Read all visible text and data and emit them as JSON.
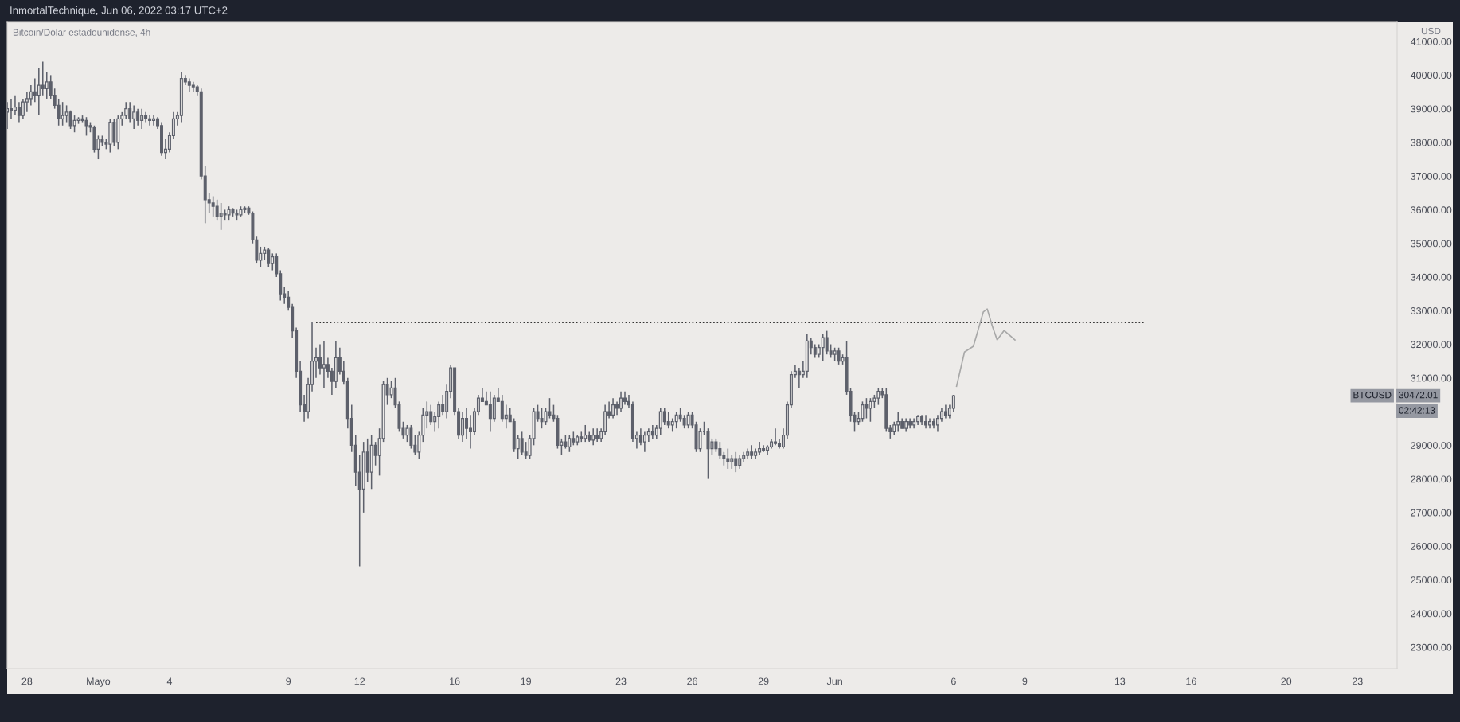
{
  "chart_data": {
    "type": "candlestick",
    "title": "InmortalTechnique, Jun 06, 2022 03:17 UTC+2",
    "subtitle": "Bitcoin/Dólar estadounidense, 4h",
    "ylabel": "USD",
    "color": "#5d606b",
    "x": [
      "2022-04-27T04:00",
      "2022-04-27T08:00",
      "2022-04-27T12:00",
      "2022-04-27T16:00",
      "2022-04-27T20:00",
      "2022-04-28T00:00",
      "2022-04-28T04:00",
      "2022-04-28T08:00",
      "2022-04-28T12:00",
      "2022-04-28T16:00",
      "2022-04-28T20:00",
      "2022-04-29T00:00",
      "2022-04-29T04:00",
      "2022-04-29T08:00",
      "2022-04-29T12:00",
      "2022-04-29T16:00",
      "2022-04-29T20:00",
      "2022-04-30T00:00",
      "2022-04-30T04:00",
      "2022-04-30T08:00",
      "2022-04-30T12:00",
      "2022-04-30T16:00",
      "2022-04-30T20:00",
      "2022-05-01T00:00",
      "2022-05-01T04:00",
      "2022-05-01T08:00",
      "2022-05-01T12:00",
      "2022-05-01T16:00",
      "2022-05-01T20:00",
      "2022-05-02T00:00",
      "2022-05-02T04:00",
      "2022-05-02T08:00",
      "2022-05-02T12:00",
      "2022-05-02T16:00",
      "2022-05-02T20:00",
      "2022-05-03T00:00",
      "2022-05-03T04:00",
      "2022-05-03T08:00",
      "2022-05-03T12:00",
      "2022-05-03T16:00",
      "2022-05-03T20:00",
      "2022-05-04T00:00",
      "2022-05-04T04:00",
      "2022-05-04T08:00",
      "2022-05-04T12:00",
      "2022-05-04T16:00",
      "2022-05-04T20:00",
      "2022-05-05T00:00",
      "2022-05-05T04:00",
      "2022-05-05T08:00",
      "2022-05-05T12:00",
      "2022-05-05T16:00",
      "2022-05-05T20:00",
      "2022-05-06T00:00",
      "2022-05-06T04:00",
      "2022-05-06T08:00",
      "2022-05-06T12:00",
      "2022-05-06T16:00",
      "2022-05-06T20:00",
      "2022-05-07T00:00",
      "2022-05-07T04:00",
      "2022-05-07T08:00",
      "2022-05-07T12:00",
      "2022-05-07T16:00",
      "2022-05-07T20:00",
      "2022-05-08T00:00",
      "2022-05-08T04:00",
      "2022-05-08T08:00",
      "2022-05-08T12:00",
      "2022-05-08T16:00",
      "2022-05-08T20:00",
      "2022-05-09T00:00",
      "2022-05-09T04:00",
      "2022-05-09T08:00",
      "2022-05-09T12:00",
      "2022-05-09T16:00",
      "2022-05-09T20:00",
      "2022-05-10T00:00",
      "2022-05-10T04:00",
      "2022-05-10T08:00",
      "2022-05-10T12:00",
      "2022-05-10T16:00",
      "2022-05-10T20:00",
      "2022-05-11T00:00",
      "2022-05-11T04:00",
      "2022-05-11T08:00",
      "2022-05-11T12:00",
      "2022-05-11T16:00",
      "2022-05-11T20:00",
      "2022-05-12T00:00",
      "2022-05-12T04:00",
      "2022-05-12T08:00",
      "2022-05-12T12:00",
      "2022-05-12T16:00",
      "2022-05-12T20:00",
      "2022-05-13T00:00",
      "2022-05-13T04:00",
      "2022-05-13T08:00",
      "2022-05-13T12:00",
      "2022-05-13T16:00",
      "2022-05-13T20:00",
      "2022-05-14T00:00",
      "2022-05-14T04:00",
      "2022-05-14T08:00",
      "2022-05-14T12:00",
      "2022-05-14T16:00",
      "2022-05-14T20:00",
      "2022-05-15T00:00",
      "2022-05-15T04:00",
      "2022-05-15T08:00",
      "2022-05-15T12:00",
      "2022-05-15T16:00",
      "2022-05-15T20:00",
      "2022-05-16T00:00",
      "2022-05-16T04:00",
      "2022-05-16T08:00",
      "2022-05-16T12:00",
      "2022-05-16T16:00",
      "2022-05-16T20:00",
      "2022-05-17T00:00",
      "2022-05-17T04:00",
      "2022-05-17T08:00",
      "2022-05-17T12:00",
      "2022-05-17T16:00",
      "2022-05-17T20:00",
      "2022-05-18T00:00",
      "2022-05-18T04:00",
      "2022-05-18T08:00",
      "2022-05-18T12:00",
      "2022-05-18T16:00",
      "2022-05-18T20:00",
      "2022-05-19T00:00",
      "2022-05-19T04:00",
      "2022-05-19T08:00",
      "2022-05-19T12:00",
      "2022-05-19T16:00",
      "2022-05-19T20:00",
      "2022-05-20T00:00",
      "2022-05-20T04:00",
      "2022-05-20T08:00",
      "2022-05-20T12:00",
      "2022-05-20T16:00",
      "2022-05-20T20:00",
      "2022-05-21T00:00",
      "2022-05-21T04:00",
      "2022-05-21T08:00",
      "2022-05-21T12:00",
      "2022-05-21T16:00",
      "2022-05-21T20:00",
      "2022-05-22T00:00",
      "2022-05-22T04:00",
      "2022-05-22T08:00",
      "2022-05-22T12:00",
      "2022-05-22T16:00",
      "2022-05-22T20:00",
      "2022-05-23T00:00",
      "2022-05-23T04:00",
      "2022-05-23T08:00",
      "2022-05-23T12:00",
      "2022-05-23T16:00",
      "2022-05-23T20:00",
      "2022-05-24T00:00",
      "2022-05-24T04:00",
      "2022-05-24T08:00",
      "2022-05-24T12:00",
      "2022-05-24T16:00",
      "2022-05-24T20:00",
      "2022-05-25T00:00",
      "2022-05-25T04:00",
      "2022-05-25T08:00",
      "2022-05-25T12:00",
      "2022-05-25T16:00",
      "2022-05-25T20:00",
      "2022-05-26T00:00",
      "2022-05-26T04:00",
      "2022-05-26T08:00",
      "2022-05-26T12:00",
      "2022-05-26T16:00",
      "2022-05-26T20:00",
      "2022-05-27T00:00",
      "2022-05-27T04:00",
      "2022-05-27T08:00",
      "2022-05-27T12:00",
      "2022-05-27T16:00",
      "2022-05-27T20:00",
      "2022-05-28T00:00",
      "2022-05-28T04:00",
      "2022-05-28T08:00",
      "2022-05-28T12:00",
      "2022-05-28T16:00",
      "2022-05-28T20:00",
      "2022-05-29T00:00",
      "2022-05-29T04:00",
      "2022-05-29T08:00",
      "2022-05-29T12:00",
      "2022-05-29T16:00",
      "2022-05-29T20:00",
      "2022-05-30T00:00",
      "2022-05-30T04:00",
      "2022-05-30T08:00",
      "2022-05-30T12:00",
      "2022-05-30T16:00",
      "2022-05-30T20:00",
      "2022-05-31T00:00",
      "2022-05-31T04:00",
      "2022-05-31T08:00",
      "2022-05-31T12:00",
      "2022-05-31T16:00",
      "2022-05-31T20:00",
      "2022-06-01T00:00",
      "2022-06-01T04:00",
      "2022-06-01T08:00",
      "2022-06-01T12:00",
      "2022-06-01T16:00",
      "2022-06-01T20:00",
      "2022-06-02T00:00",
      "2022-06-02T04:00",
      "2022-06-02T08:00",
      "2022-06-02T12:00",
      "2022-06-02T16:00",
      "2022-06-02T20:00",
      "2022-06-03T00:00",
      "2022-06-03T04:00",
      "2022-06-03T08:00",
      "2022-06-03T12:00",
      "2022-06-03T16:00",
      "2022-06-03T20:00",
      "2022-06-04T00:00",
      "2022-06-04T04:00",
      "2022-06-04T08:00",
      "2022-06-04T12:00",
      "2022-06-04T16:00",
      "2022-06-04T20:00",
      "2022-06-05T00:00",
      "2022-06-05T04:00",
      "2022-06-05T08:00",
      "2022-06-05T12:00",
      "2022-06-05T16:00",
      "2022-06-05T20:00",
      "2022-06-06T00:00"
    ],
    "ohlc": [
      [
        38900,
        39200,
        38400,
        39000
      ],
      [
        39000,
        39300,
        38700,
        38950
      ],
      [
        38950,
        39400,
        38800,
        39050
      ],
      [
        39050,
        39200,
        38600,
        38800
      ],
      [
        38800,
        39300,
        38700,
        39200
      ],
      [
        39200,
        39500,
        38900,
        39300
      ],
      [
        39300,
        39700,
        39100,
        39500
      ],
      [
        39500,
        39900,
        39200,
        39400
      ],
      [
        39400,
        40200,
        38800,
        39700
      ],
      [
        39700,
        40400,
        39400,
        39600
      ],
      [
        39600,
        40100,
        39300,
        39800
      ],
      [
        39800,
        40000,
        39300,
        39400
      ],
      [
        39400,
        39600,
        39000,
        39100
      ],
      [
        39100,
        39300,
        38500,
        38700
      ],
      [
        38700,
        39200,
        38500,
        38800
      ],
      [
        38800,
        39100,
        38600,
        38900
      ],
      [
        38900,
        38950,
        38400,
        38500
      ],
      [
        38500,
        38800,
        38300,
        38650
      ],
      [
        38650,
        38750,
        38550,
        38700
      ],
      [
        38700,
        38800,
        38600,
        38650
      ],
      [
        38650,
        38750,
        38200,
        38500
      ],
      [
        38500,
        38600,
        38300,
        38450
      ],
      [
        38450,
        38500,
        37700,
        37800
      ],
      [
        37800,
        38200,
        37500,
        38100
      ],
      [
        38100,
        38200,
        37900,
        38000
      ],
      [
        38000,
        38100,
        37800,
        37950
      ],
      [
        37950,
        38700,
        37700,
        38600
      ],
      [
        38600,
        38700,
        37900,
        38000
      ],
      [
        38000,
        38800,
        37800,
        38700
      ],
      [
        38700,
        38900,
        38500,
        38800
      ],
      [
        38800,
        39200,
        38700,
        39000
      ],
      [
        39000,
        39200,
        38600,
        38700
      ],
      [
        38700,
        39100,
        38400,
        38900
      ],
      [
        38900,
        39000,
        38500,
        38650
      ],
      [
        38650,
        39000,
        38400,
        38800
      ],
      [
        38800,
        38900,
        38600,
        38700
      ],
      [
        38700,
        38800,
        38500,
        38650
      ],
      [
        38650,
        38800,
        38500,
        38700
      ],
      [
        38700,
        38750,
        38400,
        38500
      ],
      [
        38500,
        38600,
        37600,
        37700
      ],
      [
        37700,
        38100,
        37500,
        37800
      ],
      [
        37800,
        38300,
        37700,
        38200
      ],
      [
        38200,
        38900,
        38100,
        38700
      ],
      [
        38700,
        38900,
        38500,
        38800
      ],
      [
        38800,
        40100,
        38600,
        39900
      ],
      [
        39900,
        40000,
        39700,
        39800
      ],
      [
        39800,
        39900,
        39500,
        39700
      ],
      [
        39700,
        39800,
        39500,
        39650
      ],
      [
        39650,
        39700,
        39400,
        39500
      ],
      [
        39500,
        39600,
        36900,
        37000
      ],
      [
        37000,
        37300,
        35600,
        36300
      ],
      [
        36300,
        36500,
        35900,
        36200
      ],
      [
        36200,
        36400,
        35800,
        36100
      ],
      [
        36100,
        36300,
        35700,
        35800
      ],
      [
        35800,
        36200,
        35400,
        35900
      ],
      [
        35900,
        36000,
        35700,
        35850
      ],
      [
        35850,
        36100,
        35700,
        36000
      ],
      [
        36000,
        36050,
        35800,
        35900
      ],
      [
        35900,
        36000,
        35700,
        35850
      ],
      [
        35850,
        36100,
        35800,
        36000
      ],
      [
        36000,
        36100,
        35900,
        36050
      ],
      [
        36050,
        36100,
        35850,
        35900
      ],
      [
        35900,
        35950,
        35000,
        35100
      ],
      [
        35100,
        35200,
        34400,
        34500
      ],
      [
        34500,
        34900,
        34300,
        34700
      ],
      [
        34700,
        34900,
        34500,
        34800
      ],
      [
        34800,
        34850,
        34300,
        34400
      ],
      [
        34400,
        34700,
        34200,
        34600
      ],
      [
        34600,
        34700,
        34000,
        34100
      ],
      [
        34100,
        34200,
        33300,
        33500
      ],
      [
        33500,
        33700,
        33200,
        33400
      ],
      [
        33400,
        33600,
        33000,
        33100
      ],
      [
        33100,
        33200,
        32200,
        32400
      ],
      [
        32400,
        32500,
        31000,
        31200
      ],
      [
        31200,
        31500,
        30000,
        30200
      ],
      [
        30200,
        30500,
        29700,
        30000
      ],
      [
        30000,
        31000,
        29800,
        30800
      ],
      [
        30800,
        32650,
        30600,
        31500
      ],
      [
        31500,
        31900,
        31000,
        31600
      ],
      [
        31600,
        32000,
        31100,
        31300
      ],
      [
        31300,
        32100,
        30700,
        31400
      ],
      [
        31400,
        31600,
        31000,
        31200
      ],
      [
        31200,
        31300,
        30500,
        30900
      ],
      [
        30900,
        32100,
        30700,
        31600
      ],
      [
        31600,
        31900,
        31100,
        31200
      ],
      [
        31200,
        31500,
        30800,
        30900
      ],
      [
        30900,
        31000,
        29500,
        29800
      ],
      [
        29800,
        30200,
        28800,
        29000
      ],
      [
        29000,
        29300,
        27800,
        28200
      ],
      [
        28200,
        28700,
        25400,
        27700
      ],
      [
        27700,
        29100,
        27000,
        28800
      ],
      [
        28800,
        29200,
        27900,
        28200
      ],
      [
        28200,
        29300,
        27700,
        29000
      ],
      [
        29000,
        29100,
        28400,
        28700
      ],
      [
        28700,
        29500,
        28100,
        29200
      ],
      [
        29200,
        30900,
        29100,
        30800
      ],
      [
        30800,
        31000,
        30200,
        30500
      ],
      [
        30500,
        30900,
        30400,
        30700
      ],
      [
        30700,
        31000,
        30100,
        30200
      ],
      [
        30200,
        30300,
        29400,
        29500
      ],
      [
        29500,
        29700,
        29200,
        29300
      ],
      [
        29300,
        29600,
        29100,
        29500
      ],
      [
        29500,
        29600,
        28900,
        29000
      ],
      [
        29000,
        29300,
        28700,
        28800
      ],
      [
        28800,
        29400,
        28600,
        29300
      ],
      [
        29300,
        30100,
        29100,
        29900
      ],
      [
        29900,
        30300,
        29500,
        30000
      ],
      [
        30000,
        30200,
        29600,
        29700
      ],
      [
        29700,
        30000,
        29400,
        29850
      ],
      [
        29850,
        30300,
        29500,
        30200
      ],
      [
        30200,
        30500,
        29900,
        30000
      ],
      [
        30000,
        30800,
        29800,
        30600
      ],
      [
        30600,
        31400,
        30400,
        31300
      ],
      [
        31300,
        31300,
        29900,
        30000
      ],
      [
        30000,
        30100,
        29200,
        29300
      ],
      [
        29300,
        30000,
        29100,
        29800
      ],
      [
        29800,
        30100,
        29200,
        29500
      ],
      [
        29500,
        29900,
        28900,
        29400
      ],
      [
        29400,
        30100,
        29300,
        30000
      ],
      [
        30000,
        30500,
        29900,
        30400
      ],
      [
        30400,
        30700,
        30300,
        30300
      ],
      [
        30300,
        30600,
        30200,
        30200
      ],
      [
        30200,
        30600,
        29400,
        29800
      ],
      [
        29800,
        30500,
        29700,
        30400
      ],
      [
        30400,
        30700,
        30300,
        30300
      ],
      [
        30300,
        30500,
        29700,
        29800
      ],
      [
        29800,
        30200,
        29500,
        29900
      ],
      [
        29900,
        30100,
        29700,
        29700
      ],
      [
        29700,
        29800,
        28800,
        28900
      ],
      [
        28900,
        29300,
        28600,
        29200
      ],
      [
        29200,
        29400,
        28700,
        28800
      ],
      [
        28800,
        29100,
        28600,
        28700
      ],
      [
        28700,
        29300,
        28600,
        29200
      ],
      [
        29200,
        30100,
        29000,
        30000
      ],
      [
        30000,
        30200,
        29700,
        29800
      ],
      [
        29800,
        30100,
        29500,
        29700
      ],
      [
        29700,
        30100,
        29600,
        30000
      ],
      [
        30000,
        30400,
        29800,
        29900
      ],
      [
        29900,
        30200,
        29700,
        29800
      ],
      [
        29800,
        29900,
        28900,
        29000
      ],
      [
        29000,
        29200,
        28700,
        29100
      ],
      [
        29100,
        29300,
        28900,
        28950
      ],
      [
        28950,
        29300,
        28800,
        29200
      ],
      [
        29200,
        29400,
        29000,
        29100
      ],
      [
        29100,
        29300,
        29000,
        29250
      ],
      [
        29250,
        29400,
        29100,
        29200
      ],
      [
        29200,
        29600,
        29100,
        29300
      ],
      [
        29300,
        29400,
        29100,
        29150
      ],
      [
        29150,
        29500,
        29000,
        29300
      ],
      [
        29300,
        29500,
        29100,
        29200
      ],
      [
        29200,
        29500,
        29100,
        29400
      ],
      [
        29400,
        30200,
        29300,
        30000
      ],
      [
        30000,
        30300,
        29800,
        29900
      ],
      [
        29900,
        30400,
        29800,
        30200
      ],
      [
        30200,
        30300,
        29900,
        30100
      ],
      [
        30100,
        30600,
        30000,
        30400
      ],
      [
        30400,
        30600,
        30200,
        30300
      ],
      [
        30300,
        30500,
        30100,
        30200
      ],
      [
        30200,
        30300,
        29100,
        29200
      ],
      [
        29200,
        29400,
        28900,
        29300
      ],
      [
        29300,
        29500,
        29000,
        29100
      ],
      [
        29100,
        29400,
        28800,
        29300
      ],
      [
        29300,
        29500,
        29100,
        29400
      ],
      [
        29400,
        29600,
        29200,
        29300
      ],
      [
        29300,
        29600,
        29200,
        29500
      ],
      [
        29500,
        30100,
        29300,
        30000
      ],
      [
        30000,
        30100,
        29600,
        29700
      ],
      [
        29700,
        30000,
        29500,
        29600
      ],
      [
        29600,
        29800,
        29400,
        29700
      ],
      [
        29700,
        30000,
        29500,
        29900
      ],
      [
        29900,
        30100,
        29700,
        29800
      ],
      [
        29800,
        29900,
        29500,
        29600
      ],
      [
        29600,
        30000,
        29500,
        29900
      ],
      [
        29900,
        30000,
        29500,
        29600
      ],
      [
        29600,
        29700,
        28800,
        28900
      ],
      [
        28900,
        29500,
        28800,
        29400
      ],
      [
        29400,
        29700,
        29300,
        29400
      ],
      [
        29400,
        29500,
        28000,
        28900
      ],
      [
        28900,
        29200,
        28700,
        29100
      ],
      [
        29100,
        29200,
        28800,
        28900
      ],
      [
        28900,
        29100,
        28600,
        28700
      ],
      [
        28700,
        28800,
        28400,
        28600
      ],
      [
        28600,
        28900,
        28300,
        28500
      ],
      [
        28500,
        28700,
        28300,
        28600
      ],
      [
        28600,
        28800,
        28200,
        28400
      ],
      [
        28400,
        28700,
        28300,
        28600
      ],
      [
        28600,
        28800,
        28500,
        28700
      ],
      [
        28700,
        28900,
        28600,
        28800
      ],
      [
        28800,
        29000,
        28600,
        28700
      ],
      [
        28700,
        28900,
        28600,
        28800
      ],
      [
        28800,
        29100,
        28700,
        28900
      ],
      [
        28900,
        29000,
        28800,
        28850
      ],
      [
        28850,
        29000,
        28700,
        28950
      ],
      [
        28950,
        29200,
        28900,
        29100
      ],
      [
        29100,
        29500,
        29000,
        29050
      ],
      [
        29050,
        29200,
        28900,
        28950
      ],
      [
        28950,
        29500,
        28900,
        29300
      ],
      [
        29300,
        30300,
        29200,
        30200
      ],
      [
        30200,
        31200,
        30100,
        31100
      ],
      [
        31100,
        31400,
        31000,
        31200
      ],
      [
        31200,
        31300,
        30700,
        31100
      ],
      [
        31100,
        31500,
        31000,
        31200
      ],
      [
        31200,
        32300,
        31000,
        32100
      ],
      [
        32100,
        32200,
        31700,
        31900
      ],
      [
        31900,
        32000,
        31600,
        31700
      ],
      [
        31700,
        32000,
        31600,
        31900
      ],
      [
        31900,
        32300,
        31500,
        32200
      ],
      [
        32200,
        32400,
        31700,
        31800
      ],
      [
        31800,
        32000,
        31600,
        31700
      ],
      [
        31700,
        31900,
        31500,
        31800
      ],
      [
        31800,
        31900,
        31400,
        31500
      ],
      [
        31500,
        31700,
        31400,
        31600
      ],
      [
        31600,
        32100,
        30500,
        30600
      ],
      [
        30600,
        30700,
        29700,
        29900
      ],
      [
        29900,
        30000,
        29400,
        29700
      ],
      [
        29700,
        30000,
        29600,
        29800
      ],
      [
        29800,
        30300,
        29700,
        30200
      ],
      [
        30200,
        30400,
        29800,
        30100
      ],
      [
        30100,
        30400,
        29700,
        30300
      ],
      [
        30300,
        30500,
        30100,
        30400
      ],
      [
        30400,
        30700,
        30200,
        30600
      ],
      [
        30600,
        30700,
        30400,
        30500
      ],
      [
        30500,
        30700,
        29400,
        29500
      ],
      [
        29500,
        29600,
        29200,
        29400
      ],
      [
        29400,
        29700,
        29300,
        29600
      ],
      [
        29600,
        30000,
        29400,
        29700
      ],
      [
        29700,
        29800,
        29500,
        29500
      ],
      [
        29500,
        29800,
        29400,
        29700
      ],
      [
        29700,
        29800,
        29500,
        29600
      ],
      [
        29600,
        29800,
        29500,
        29700
      ],
      [
        29700,
        29900,
        29600,
        29850
      ],
      [
        29850,
        29900,
        29600,
        29700
      ],
      [
        29700,
        29900,
        29500,
        29600
      ],
      [
        29600,
        29800,
        29500,
        29700
      ],
      [
        29700,
        29800,
        29500,
        29600
      ],
      [
        29600,
        29900,
        29400,
        29800
      ],
      [
        29800,
        30100,
        29700,
        30000
      ],
      [
        30000,
        30200,
        29800,
        29900
      ],
      [
        29900,
        30200,
        29800,
        30100
      ],
      [
        30100,
        30500,
        30000,
        30472.01
      ]
    ],
    "series": [
      {
        "type": "line",
        "color": "#333333",
        "line_style": "dotted",
        "x": [
          "2022-05-10T04:00",
          "2022-06-14T00:00"
        ],
        "values": [
          32650,
          32650
        ]
      },
      {
        "type": "line",
        "color": "#a8a8a8",
        "line_style": "solid",
        "x": [
          "2022-06-06T03:00",
          "2022-06-06T11:00",
          "2022-06-06T20:00",
          "2022-06-07T06:00",
          "2022-06-07T10:00",
          "2022-06-07T15:00",
          "2022-06-07T20:00",
          "2022-06-08T03:00",
          "2022-06-08T14:00"
        ],
        "values": [
          30750,
          31770,
          31940,
          32960,
          33050,
          32550,
          32130,
          32410,
          32130
        ]
      }
    ],
    "xlim": [
      "2022-04-27T04:00",
      "2022-06-24T16:00"
    ],
    "xticks": [
      {
        "value": "2022-04-28",
        "label": "28"
      },
      {
        "value": "2022-05-01",
        "label": "Mayo"
      },
      {
        "value": "2022-05-04",
        "label": "4"
      },
      {
        "value": "2022-05-09",
        "label": "9"
      },
      {
        "value": "2022-05-12",
        "label": "12"
      },
      {
        "value": "2022-05-16",
        "label": "16"
      },
      {
        "value": "2022-05-19",
        "label": "19"
      },
      {
        "value": "2022-05-23",
        "label": "23"
      },
      {
        "value": "2022-05-26",
        "label": "26"
      },
      {
        "value": "2022-05-29",
        "label": "29"
      },
      {
        "value": "2022-06-01",
        "label": "Jun"
      },
      {
        "value": "2022-06-06",
        "label": "6"
      },
      {
        "value": "2022-06-09",
        "label": "9"
      },
      {
        "value": "2022-06-13",
        "label": "13"
      },
      {
        "value": "2022-06-16",
        "label": "16"
      },
      {
        "value": "2022-06-20",
        "label": "20"
      },
      {
        "value": "2022-06-23",
        "label": "23"
      }
    ],
    "ylim": [
      22360,
      41570
    ],
    "yticks": [
      {
        "value": 23000,
        "label": "23000.00"
      },
      {
        "value": 24000,
        "label": "24000.00"
      },
      {
        "value": 25000,
        "label": "25000.00"
      },
      {
        "value": 26000,
        "label": "26000.00"
      },
      {
        "value": 27000,
        "label": "27000.00"
      },
      {
        "value": 28000,
        "label": "28000.00"
      },
      {
        "value": 29000,
        "label": "29000.00"
      },
      {
        "value": 31000,
        "label": "31000.00"
      },
      {
        "value": 32000,
        "label": "32000.00"
      },
      {
        "value": 33000,
        "label": "33000.00"
      },
      {
        "value": 34000,
        "label": "34000.00"
      },
      {
        "value": 35000,
        "label": "35000.00"
      },
      {
        "value": 36000,
        "label": "36000.00"
      },
      {
        "value": 37000,
        "label": "37000.00"
      },
      {
        "value": 38000,
        "label": "38000.00"
      },
      {
        "value": 39000,
        "label": "39000.00"
      },
      {
        "value": 40000,
        "label": "40000.00"
      },
      {
        "value": 41000,
        "label": "41000.00"
      }
    ],
    "grid": false,
    "annotations": [
      "BTCUSD",
      "30472.01",
      "02:42:13"
    ]
  }
}
